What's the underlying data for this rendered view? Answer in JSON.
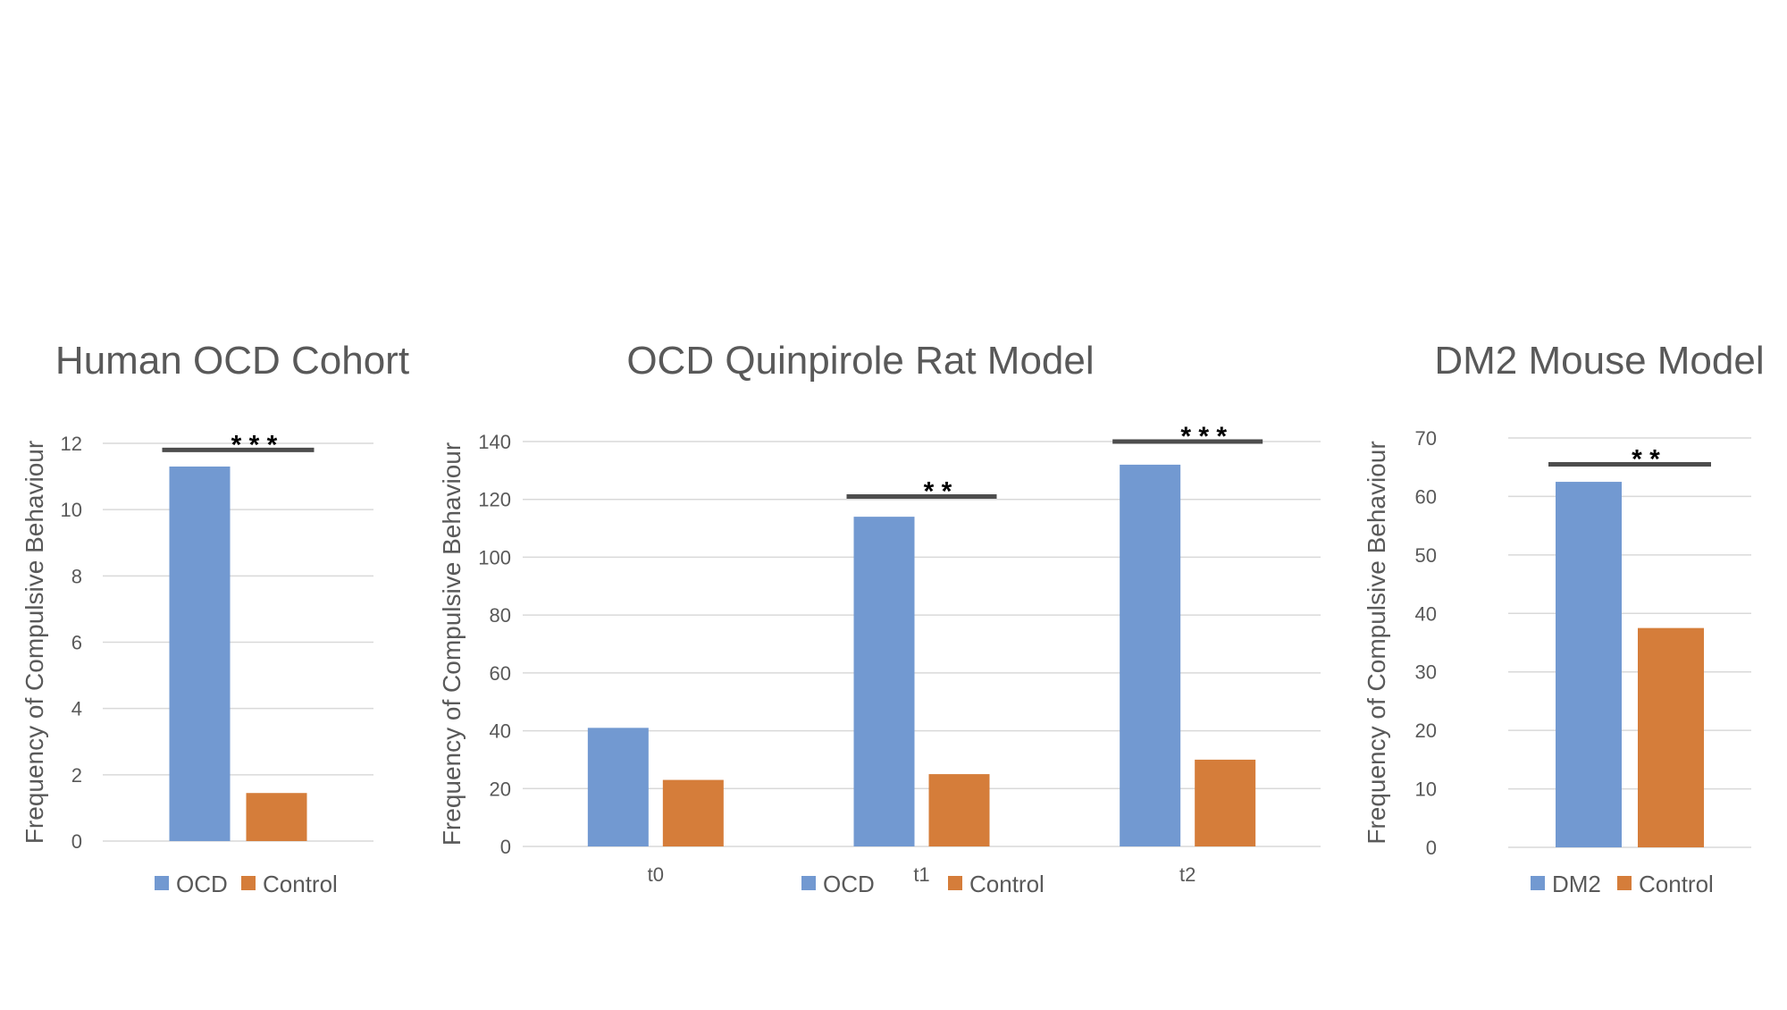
{
  "colors": {
    "series_a": "#7299D1",
    "series_b": "#D57D3A",
    "grid": "#D9D9D9",
    "bracket": "#4D4D4D",
    "text": "#595959"
  },
  "chart_data": [
    {
      "type": "bar",
      "title": "Human OCD Cohort",
      "ylabel": "Frequency of Compulsive Behaviour",
      "xlabel": "",
      "ylim": [
        0,
        12
      ],
      "yticks": [
        0,
        2,
        4,
        6,
        8,
        10,
        12
      ],
      "categories": [
        ""
      ],
      "series": [
        {
          "name": "OCD",
          "values": [
            11.3
          ]
        },
        {
          "name": "Control",
          "values": [
            1.45
          ]
        }
      ],
      "significance": [
        {
          "category_index": 0,
          "label": "* * *",
          "y": 11.8
        }
      ],
      "legend_position": "bottom",
      "grid": true
    },
    {
      "type": "bar",
      "title": "OCD Quinpirole Rat Model",
      "ylabel": "Frequency of Compulsive Behaviour",
      "xlabel": "",
      "ylim": [
        0,
        140
      ],
      "yticks": [
        0,
        20,
        40,
        60,
        80,
        100,
        120,
        140
      ],
      "categories": [
        "t0",
        "t1",
        "t2"
      ],
      "series": [
        {
          "name": "OCD",
          "values": [
            41,
            114,
            132
          ]
        },
        {
          "name": "Control",
          "values": [
            23,
            25,
            30
          ]
        }
      ],
      "significance": [
        {
          "category_index": 1,
          "label": "* *",
          "y": 121
        },
        {
          "category_index": 2,
          "label": "* * *",
          "y": 140
        }
      ],
      "legend_position": "bottom",
      "grid": true
    },
    {
      "type": "bar",
      "title": "DM2 Mouse Model",
      "ylabel": "Frequency of Compulsive Behaviour",
      "xlabel": "",
      "ylim": [
        0,
        70
      ],
      "yticks": [
        0,
        10,
        20,
        30,
        40,
        50,
        60,
        70
      ],
      "categories": [
        ""
      ],
      "series": [
        {
          "name": "DM2",
          "values": [
            62.5
          ]
        },
        {
          "name": "Control",
          "values": [
            37.5
          ]
        }
      ],
      "significance": [
        {
          "category_index": 0,
          "label": "* *",
          "y": 65.5
        }
      ],
      "legend_position": "bottom",
      "grid": true
    }
  ]
}
